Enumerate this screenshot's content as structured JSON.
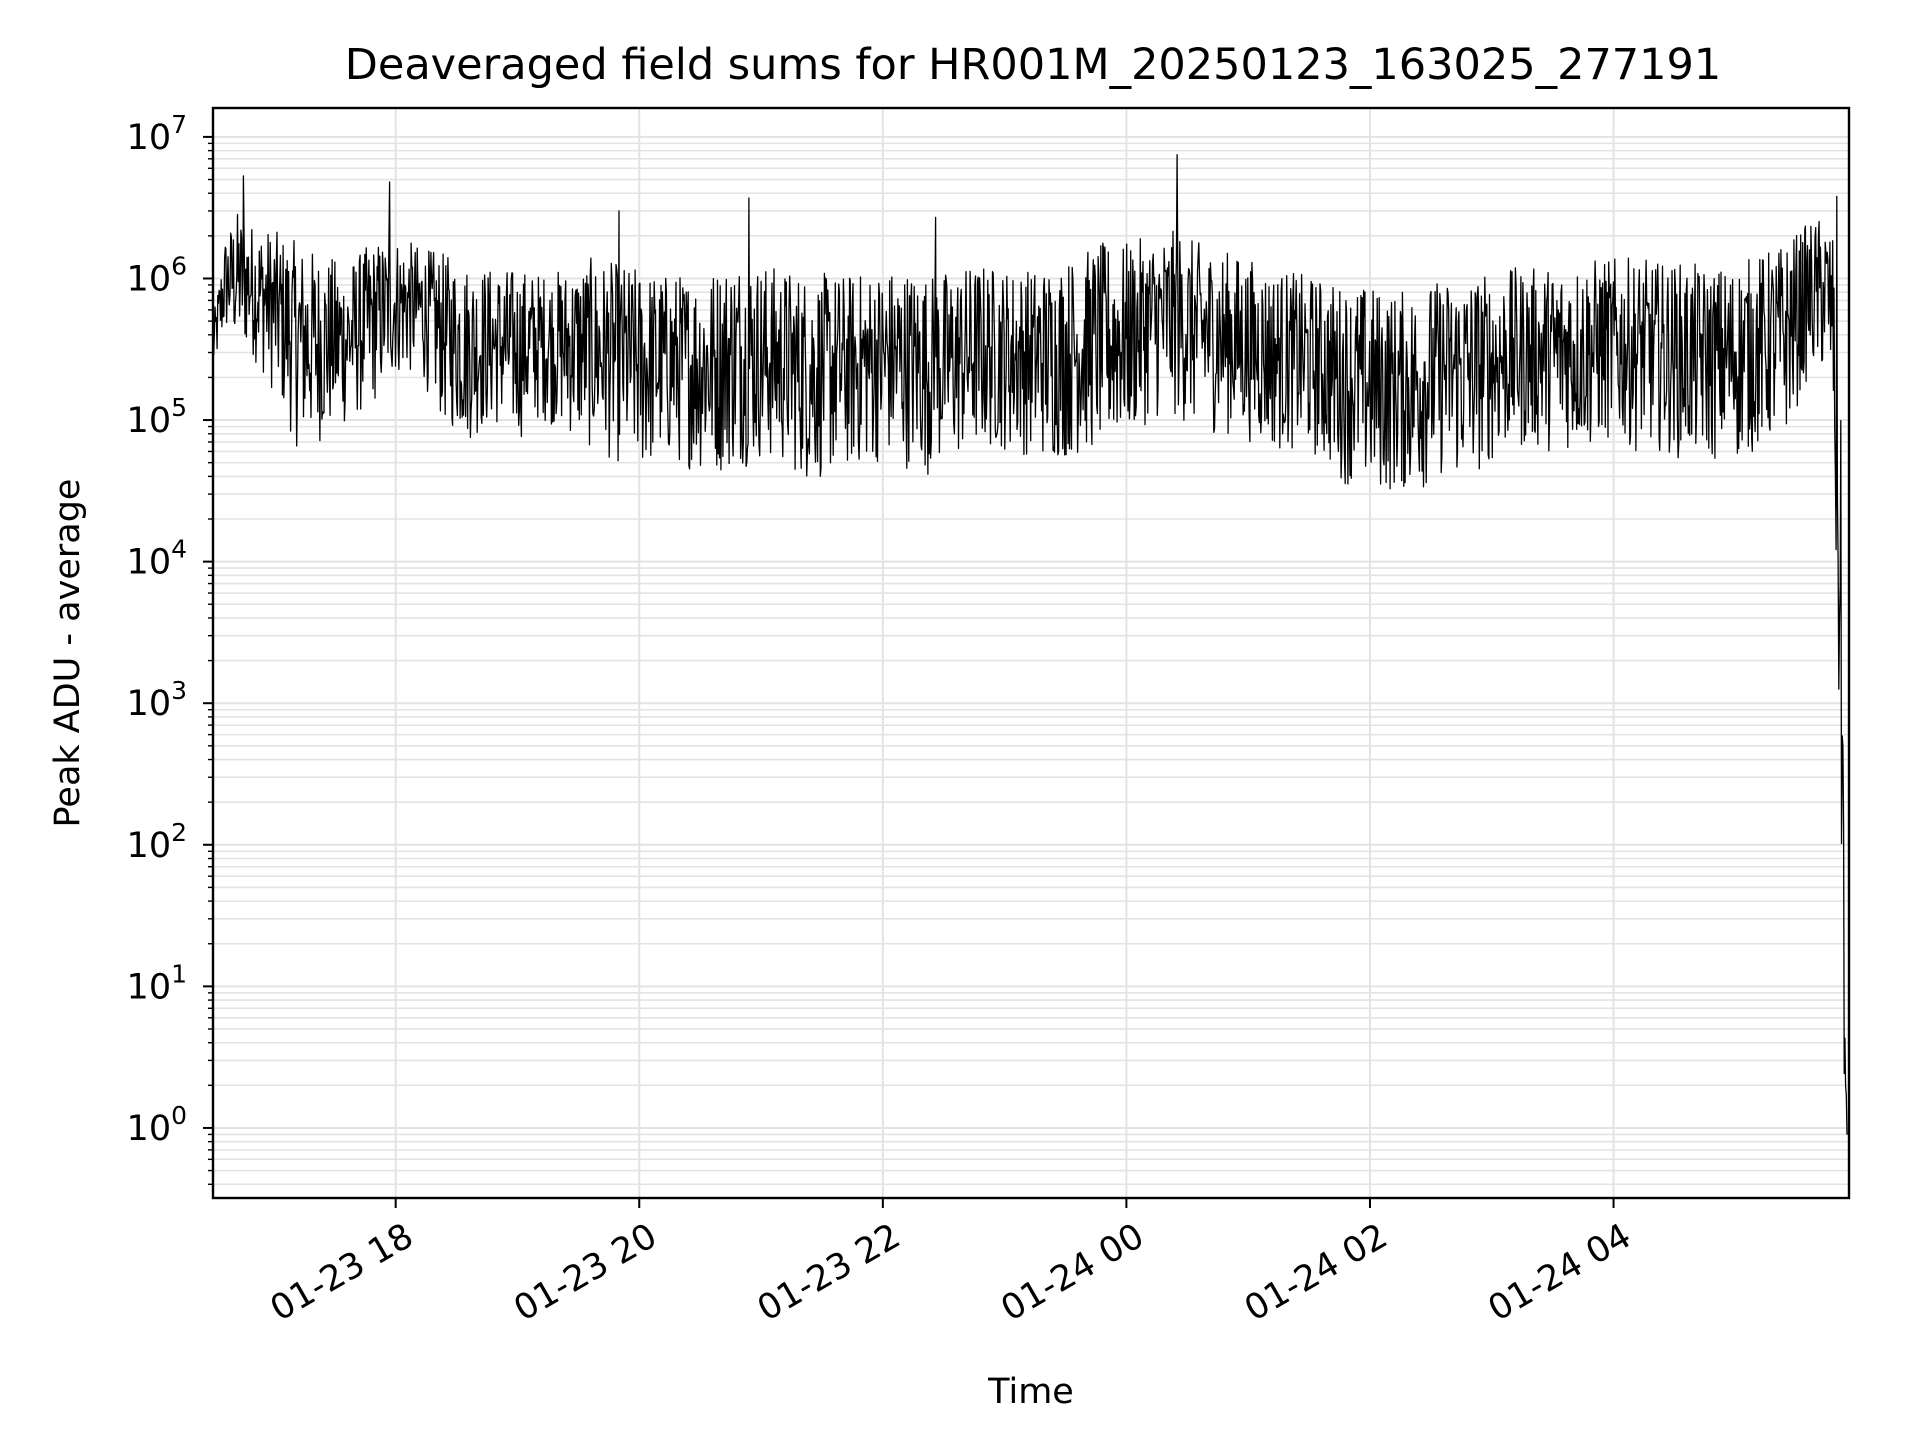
{
  "chart_data": {
    "type": "line",
    "title": "Deaveraged field sums for HR001M_20250123_163025_277191",
    "xlabel": "Time",
    "ylabel": "Peak ADU - average",
    "yscale": "log",
    "ylim": [
      0.32,
      16000000
    ],
    "xlim": [
      "2025-01-23 16:30",
      "2025-01-24 05:56"
    ],
    "grid": true,
    "legend": "none",
    "line_color": "#000000",
    "x_ticks": [
      {
        "value": "2025-01-23 18:00",
        "label": "01-23 18"
      },
      {
        "value": "2025-01-23 20:00",
        "label": "01-23 20"
      },
      {
        "value": "2025-01-23 22:00",
        "label": "01-23 22"
      },
      {
        "value": "2025-01-24 00:00",
        "label": "01-24 00"
      },
      {
        "value": "2025-01-24 02:00",
        "label": "01-24 02"
      },
      {
        "value": "2025-01-24 04:00",
        "label": "01-24 04"
      }
    ],
    "y_ticks": [
      {
        "value": 1,
        "base": "10",
        "exp": "0"
      },
      {
        "value": 10,
        "base": "10",
        "exp": "1"
      },
      {
        "value": 100,
        "base": "10",
        "exp": "2"
      },
      {
        "value": 1000,
        "base": "10",
        "exp": "3"
      },
      {
        "value": 10000,
        "base": "10",
        "exp": "4"
      },
      {
        "value": 100000,
        "base": "10",
        "exp": "5"
      },
      {
        "value": 1000000,
        "base": "10",
        "exp": "6"
      },
      {
        "value": 10000000,
        "base": "10",
        "exp": "7"
      }
    ],
    "series": [
      {
        "x": [
          "2025-01-23 16:30",
          "2025-01-23 16:36",
          "2025-01-23 16:42",
          "2025-01-23 16:48",
          "2025-01-23 17:00",
          "2025-01-23 17:12",
          "2025-01-23 17:24",
          "2025-01-23 17:36",
          "2025-01-23 17:48",
          "2025-01-23 18:00",
          "2025-01-23 18:12",
          "2025-01-23 18:24",
          "2025-01-23 18:36",
          "2025-01-23 18:48",
          "2025-01-23 19:00",
          "2025-01-23 19:12",
          "2025-01-23 19:24",
          "2025-01-23 19:36",
          "2025-01-23 19:48",
          "2025-01-23 20:00",
          "2025-01-23 20:12",
          "2025-01-23 20:24",
          "2025-01-23 20:36",
          "2025-01-23 20:48",
          "2025-01-23 21:00",
          "2025-01-23 21:12",
          "2025-01-23 21:24",
          "2025-01-23 21:36",
          "2025-01-23 21:48",
          "2025-01-23 22:00",
          "2025-01-23 22:12",
          "2025-01-23 22:24",
          "2025-01-23 22:36",
          "2025-01-23 22:48",
          "2025-01-23 23:00",
          "2025-01-23 23:12",
          "2025-01-23 23:24",
          "2025-01-23 23:36",
          "2025-01-23 23:48",
          "2025-01-24 00:00",
          "2025-01-24 00:12",
          "2025-01-24 00:24",
          "2025-01-24 00:36",
          "2025-01-24 00:48",
          "2025-01-24 01:00",
          "2025-01-24 01:12",
          "2025-01-24 01:24",
          "2025-01-24 01:36",
          "2025-01-24 01:48",
          "2025-01-24 02:00",
          "2025-01-24 02:12",
          "2025-01-24 02:24",
          "2025-01-24 02:36",
          "2025-01-24 02:48",
          "2025-01-24 03:00",
          "2025-01-24 03:12",
          "2025-01-24 03:24",
          "2025-01-24 03:36",
          "2025-01-24 03:48",
          "2025-01-24 04:00",
          "2025-01-24 04:12",
          "2025-01-24 04:24",
          "2025-01-24 04:36",
          "2025-01-24 04:48",
          "2025-01-24 05:00",
          "2025-01-24 05:12",
          "2025-01-24 05:24",
          "2025-01-24 05:36",
          "2025-01-24 05:44",
          "2025-01-24 05:48",
          "2025-01-24 05:50",
          "2025-01-24 05:52",
          "2025-01-24 05:53",
          "2025-01-24 05:54",
          "2025-01-24 05:55"
        ],
        "y_low": [
          200000,
          400000,
          300000,
          300000,
          150000,
          60000,
          70000,
          90000,
          120000,
          200000,
          200000,
          90000,
          70000,
          90000,
          70000,
          100000,
          80000,
          60000,
          50000,
          40000,
          50000,
          45000,
          40000,
          45000,
          50000,
          45000,
          35000,
          40000,
          45000,
          50000,
          45000,
          40000,
          50000,
          60000,
          60000,
          55000,
          50000,
          55000,
          60000,
          70000,
          100000,
          100000,
          80000,
          80000,
          70000,
          60000,
          60000,
          50000,
          35000,
          30000,
          30000,
          30000,
          40000,
          35000,
          50000,
          60000,
          60000,
          60000,
          60000,
          70000,
          60000,
          60000,
          50000,
          50000,
          50000,
          60000,
          70000,
          200000,
          200000,
          150000,
          2000,
          100,
          5,
          1,
          0.5
        ],
        "y_high": [
          500000,
          2000000,
          3000000,
          2500000,
          2200000,
          1800000,
          1500000,
          1300000,
          1800000,
          2000000,
          1700000,
          1500000,
          1300000,
          1200000,
          1200000,
          1100000,
          1200000,
          1400000,
          1300000,
          1200000,
          1100000,
          1100000,
          1200000,
          1500000,
          1300000,
          1200000,
          1100000,
          1100000,
          1100000,
          1200000,
          1200000,
          1100000,
          1200000,
          1300000,
          1200000,
          1200000,
          1300000,
          1500000,
          1800000,
          1800000,
          2000000,
          2200000,
          1800000,
          1600000,
          1400000,
          1200000,
          1100000,
          1000000,
          900000,
          900000,
          800000,
          900000,
          1000000,
          1100000,
          1100000,
          1200000,
          1200000,
          1300000,
          1400000,
          1400000,
          1400000,
          1300000,
          1300000,
          1200000,
          1300000,
          1500000,
          1800000,
          2500000,
          2800000,
          2000000,
          600000,
          100000,
          5000,
          7,
          1
        ],
        "spikes": [
          {
            "x": "2025-01-23 16:45",
            "y": 5300000
          },
          {
            "x": "2025-01-23 17:57",
            "y": 4800000
          },
          {
            "x": "2025-01-23 19:50",
            "y": 3000000
          },
          {
            "x": "2025-01-23 20:54",
            "y": 3700000
          },
          {
            "x": "2025-01-23 22:26",
            "y": 2700000
          },
          {
            "x": "2025-01-24 00:25",
            "y": 7500000
          },
          {
            "x": "2025-01-24 05:50",
            "y": 3800000
          }
        ]
      }
    ]
  }
}
